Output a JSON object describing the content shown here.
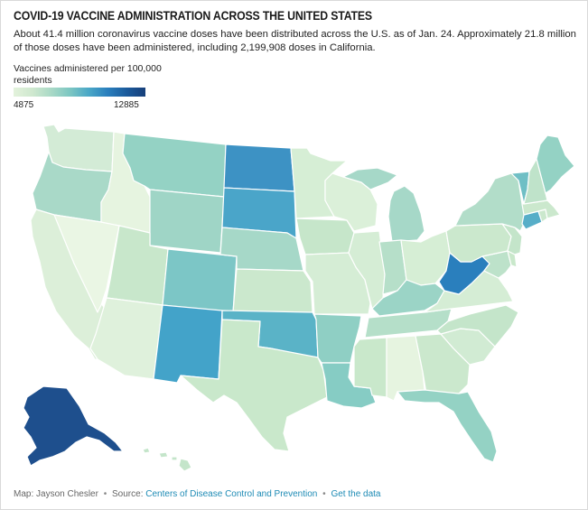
{
  "title": "COVID-19 VACCINE ADMINISTRATION ACROSS THE UNITED STATES",
  "description": "About 41.4 million coronavirus vaccine doses have been distributed across the U.S. as of Jan. 24. Approximately 21.8 million of those doses have been administered, including 2,199,908 doses in California.",
  "legend": {
    "title": "Vaccines administered per 100,000 residents",
    "min_label": "4875",
    "max_label": "12885",
    "min_value": 4875,
    "max_value": 12885,
    "gradient_colors": [
      "#e3f2dc",
      "#cfe8cf",
      "#a9d9c6",
      "#7cc6c2",
      "#4aa7c7",
      "#2a7fbd",
      "#1b5b9c",
      "#173f7a"
    ]
  },
  "footer": {
    "credit": "Map: Jayson Chesler",
    "separator": "•",
    "source_prefix": "Source:",
    "source_link": "Centers of Disease Control and Prevention",
    "data_link": "Get the data"
  },
  "states": {
    "WA": "#d3ebd6",
    "OR": "#a9d9c8",
    "CA": "#dcefd9",
    "NV": "#eaf6e4",
    "ID": "#e6f4e0",
    "MT": "#94d2c4",
    "WY": "#9fd5c6",
    "UT": "#c8e7cb",
    "AZ": "#dff1dc",
    "CO": "#7cc6c6",
    "NM": "#43a3c9",
    "ND": "#3d92c4",
    "SD": "#4aa5c9",
    "NE": "#a6d8c8",
    "KS": "#cbe8cd",
    "OK": "#5ab3c7",
    "TX": "#c9e8cb",
    "MN": "#d6eed5",
    "IA": "#c6e6ca",
    "MO": "#d5edd5",
    "AR": "#8fcfc4",
    "LA": "#86ccc4",
    "WI": "#dbf0d9",
    "IL": "#d5edd5",
    "MI": "#a6d8c8",
    "IN": "#b6dfc9",
    "OH": "#d6eed5",
    "KY": "#9bd4c6",
    "TN": "#b5dfc9",
    "MS": "#c9e8cb",
    "AL": "#e6f4e0",
    "GA": "#cbe8cd",
    "FL": "#94d2c4",
    "SC": "#d1ebd3",
    "NC": "#c4e5ca",
    "VA": "#d5edd5",
    "WV": "#2a7fbd",
    "PA": "#cbe8cd",
    "NY": "#b2ddc9",
    "VT": "#6fbfc5",
    "NH": "#bfe3ca",
    "ME": "#94d2c4",
    "MA": "#cbe8cd",
    "RI": "#cbe8cd",
    "CT": "#57aec8",
    "NJ": "#c4e5ca",
    "DE": "#c9e8cb",
    "MD": "#bde2ca",
    "AK": "#1e4f8d",
    "HI": "#c4e5ca"
  }
}
